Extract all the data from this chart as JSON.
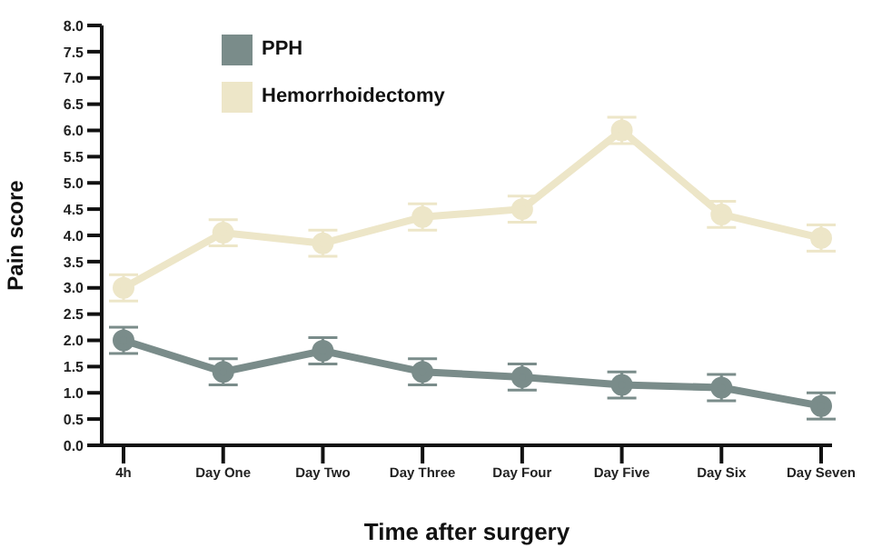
{
  "chart_data": {
    "type": "line",
    "xlabel": "Time after surgery",
    "ylabel": "Pain score",
    "categories": [
      "4h",
      "Day One",
      "Day Two",
      "Day Three",
      "Day Four",
      "Day Five",
      "Day Six",
      "Day Seven"
    ],
    "series": [
      {
        "name": "PPH",
        "color": "#7a8c8a",
        "values": [
          2.0,
          1.4,
          1.8,
          1.4,
          1.3,
          1.15,
          1.1,
          0.75
        ],
        "errors": [
          0.25,
          0.25,
          0.25,
          0.25,
          0.25,
          0.25,
          0.25,
          0.25
        ]
      },
      {
        "name": "Hemorrhoidectomy",
        "color": "#ede6c8",
        "values": [
          3.0,
          4.05,
          3.85,
          4.35,
          4.5,
          6.0,
          4.4,
          3.95
        ],
        "errors": [
          0.25,
          0.25,
          0.25,
          0.25,
          0.25,
          0.25,
          0.25,
          0.25
        ]
      }
    ],
    "ylim": [
      0,
      8
    ],
    "yticks": [
      {
        "value": 0,
        "label": "0.0"
      },
      {
        "value": 0.5,
        "label": "0.5"
      },
      {
        "value": 1,
        "label": "1.0"
      },
      {
        "value": 1.5,
        "label": "1.5"
      },
      {
        "value": 2,
        "label": "2.0"
      },
      {
        "value": 2.5,
        "label": "2.5"
      },
      {
        "value": 3,
        "label": "3.0"
      },
      {
        "value": 3.5,
        "label": "3.5"
      },
      {
        "value": 4,
        "label": "4.0"
      },
      {
        "value": 4.5,
        "label": "4.5"
      },
      {
        "value": 5,
        "label": "5.0"
      },
      {
        "value": 5.5,
        "label": "5.5"
      },
      {
        "value": 6,
        "label": "6.0"
      },
      {
        "value": 6.5,
        "label": "6.5"
      },
      {
        "value": 7,
        "label": "7.0"
      },
      {
        "value": 7.5,
        "label": "7.5"
      },
      {
        "value": 8,
        "label": "8.0"
      }
    ],
    "grid": false,
    "legend": "top left",
    "marker": "circle",
    "line_style": "solid"
  }
}
